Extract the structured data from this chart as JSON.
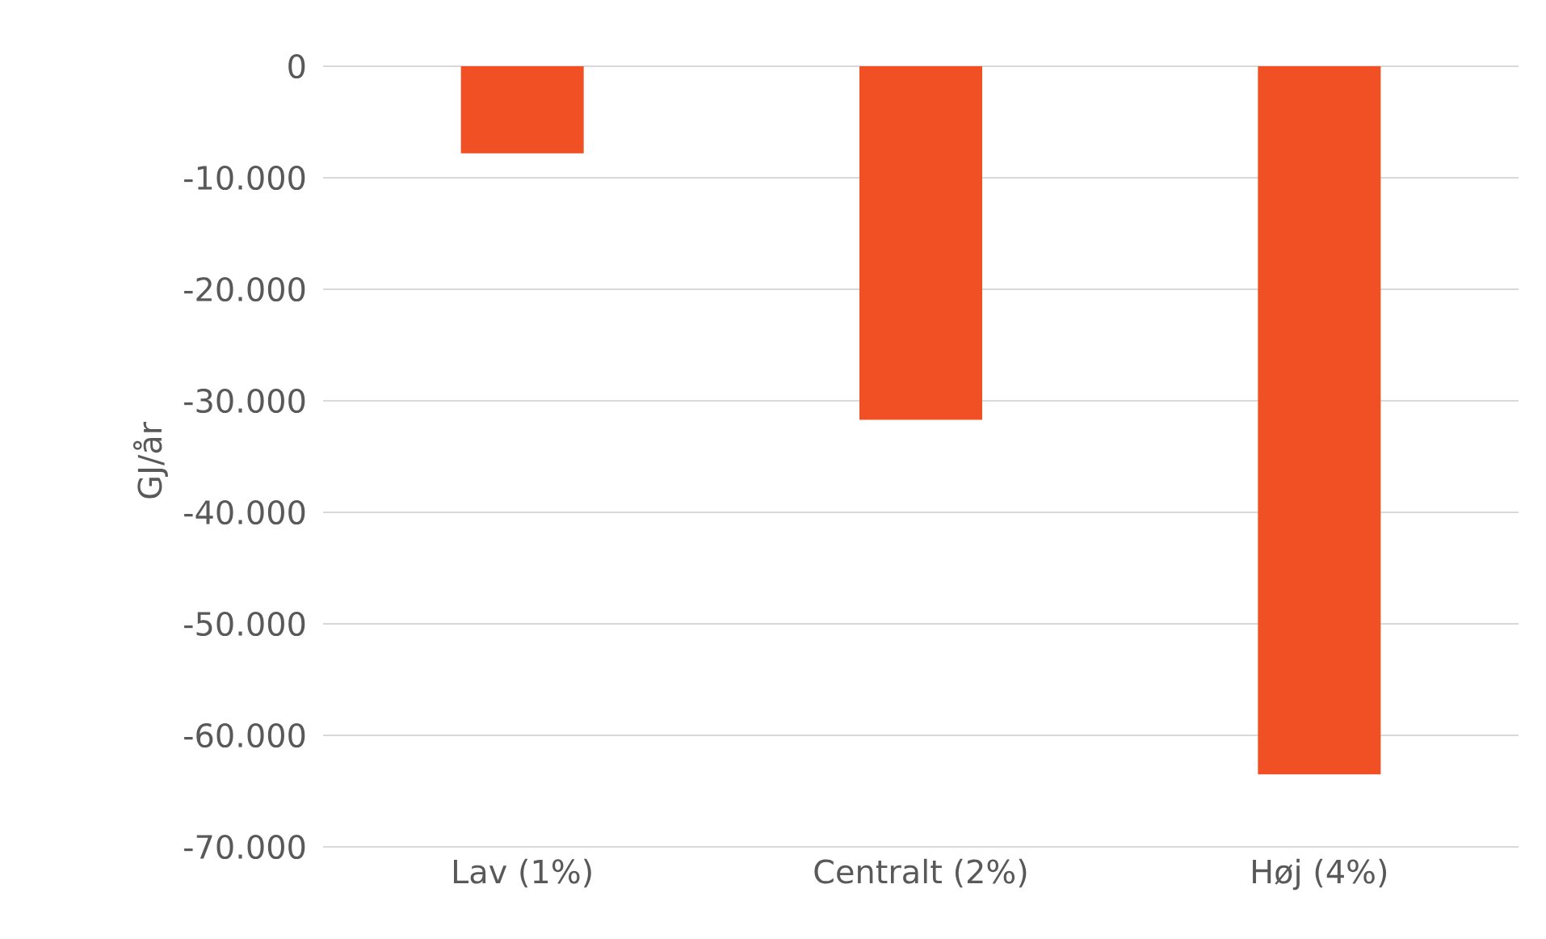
{
  "chart_data": {
    "type": "bar",
    "ylabel": "GJ/år",
    "categories": [
      "Lav (1%)",
      "Centralt (2%)",
      "Høj (4%)"
    ],
    "values": [
      -7800,
      -31700,
      -63500
    ],
    "color": "#f15024",
    "ylim": [
      -70000,
      0
    ],
    "yticks": [
      {
        "value": -70000,
        "label": "-70.000"
      },
      {
        "value": -60000,
        "label": "-60.000"
      },
      {
        "value": -50000,
        "label": "-50.000"
      },
      {
        "value": -40000,
        "label": "-40.000"
      },
      {
        "value": -30000,
        "label": "-30.000"
      },
      {
        "value": -20000,
        "label": "-20.000"
      },
      {
        "value": -10000,
        "label": "-10.000"
      },
      0
    ],
    "grid": "y"
  }
}
